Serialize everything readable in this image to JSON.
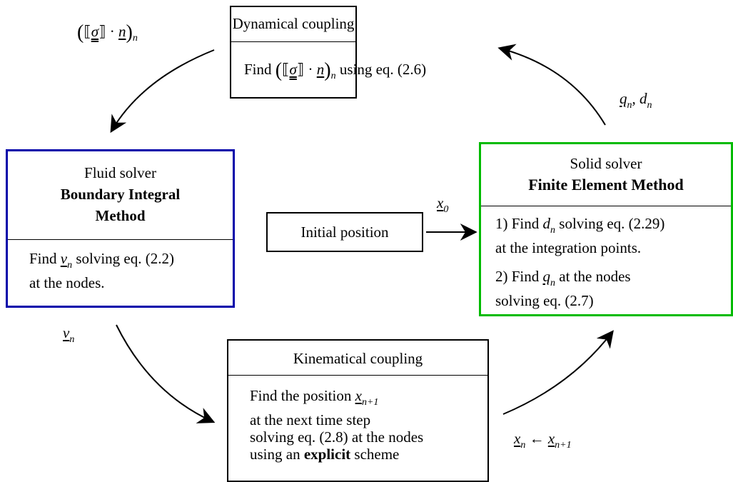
{
  "dynamical": {
    "title": "Dynamical coupling",
    "body": [
      "Find ",
      "(",
      "⟦",
      "σ",
      "⟧ · ",
      "n",
      ")",
      "n",
      " using eq. (2.6)"
    ]
  },
  "fluid": {
    "title": [
      "Fluid solver",
      "Boundary Integral",
      "Method"
    ],
    "body": [
      "Find ",
      "v",
      "n",
      " solving eq. (2.2)",
      "at the nodes."
    ]
  },
  "solid": {
    "title": [
      "Solid solver",
      "Finite Element Method"
    ],
    "step1": [
      "1) Find ",
      "d",
      "n",
      " solving eq. (2.29)",
      "at the integration points."
    ],
    "step2": [
      "2) Find ",
      "q",
      "n",
      " at the nodes",
      "solving eq. (2.7)"
    ]
  },
  "initial": {
    "label": "Initial position"
  },
  "kinematical": {
    "title": "Kinematical coupling",
    "body": [
      "Find the position ",
      "x",
      "n+1",
      "at the next time step",
      "solving eq. (2.8) at the nodes",
      "using an ",
      "explicit",
      " scheme"
    ]
  },
  "edges": {
    "traction": [
      "(",
      "⟦",
      "σ",
      "⟧ · ",
      "n",
      ")",
      "n"
    ],
    "solid_out": [
      "q",
      "n",
      ", ",
      "d",
      "n"
    ],
    "x0": [
      "x",
      "0"
    ],
    "velocity": [
      "v",
      "n"
    ],
    "update": [
      "x",
      "n",
      " ← ",
      "x",
      "n+1"
    ]
  }
}
